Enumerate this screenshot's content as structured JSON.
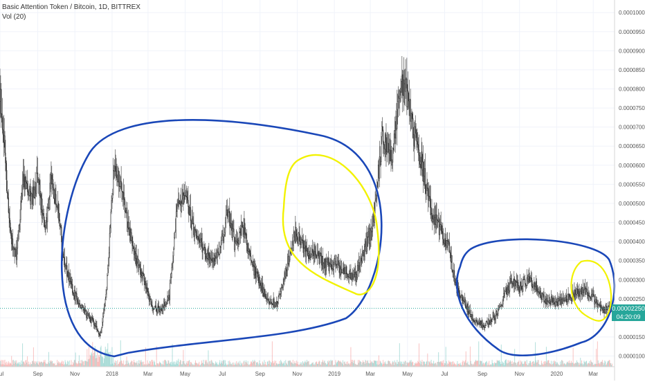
{
  "legend": {
    "symbol": "Basic Attention Token / Bitcoin, 1D, BITTREX",
    "volume": "Vol (20)"
  },
  "price_tag": {
    "last": "0.00002250",
    "countdown": "04:20:09"
  },
  "colors": {
    "up": "#26a69a",
    "down": "#ef5350",
    "candle": "#333333",
    "grid": "#f0f3fa",
    "last_line": "#26a69a",
    "blue_marker": "#1a47b8",
    "yellow_marker": "#f2f200",
    "axis_text": "#555555"
  },
  "chart_data": {
    "type": "candlestick",
    "y_axis": {
      "ticks": [
        "0.00001000",
        "0.00001500",
        "0.00002000",
        "0.00002500",
        "0.00003000",
        "0.00003500",
        "0.00004000",
        "0.00004500",
        "0.00005000",
        "0.00005500",
        "0.00006000",
        "0.00006500",
        "0.00007000",
        "0.00007500",
        "0.00008000",
        "0.00008500",
        "0.00009000",
        "0.00009500",
        "0.00010000"
      ],
      "range": [
        7.2e-06,
        0.0001033
      ]
    },
    "x_axis": {
      "ticks": [
        "Jul",
        "Sep",
        "Nov",
        "2018",
        "Mar",
        "May",
        "Jul",
        "Sep",
        "Nov",
        "2019",
        "Mar",
        "May",
        "Jul",
        "Sep",
        "Nov",
        "2020",
        "Mar"
      ],
      "range": [
        "2017-07-01",
        "2020-04-05"
      ]
    },
    "price_path": [
      [
        "2017-07-01",
        8e-05
      ],
      [
        "2017-07-08",
        6.5e-05
      ],
      [
        "2017-07-18",
        4.2e-05
      ],
      [
        "2017-07-28",
        3.6e-05
      ],
      [
        "2017-08-08",
        5.6e-05
      ],
      [
        "2017-08-20",
        5.1e-05
      ],
      [
        "2017-09-01",
        5.6e-05
      ],
      [
        "2017-09-12",
        4.3e-05
      ],
      [
        "2017-09-24",
        5.6e-05
      ],
      [
        "2017-10-05",
        4.7e-05
      ],
      [
        "2017-10-15",
        3.4e-05
      ],
      [
        "2017-10-28",
        2.7e-05
      ],
      [
        "2017-11-10",
        2.3e-05
      ],
      [
        "2017-11-25",
        2e-05
      ],
      [
        "2017-12-05",
        1.8e-05
      ],
      [
        "2017-12-12",
        1.5e-05
      ],
      [
        "2017-12-22",
        2.5e-05
      ],
      [
        "2018-01-04",
        5.9e-05
      ],
      [
        "2018-01-15",
        5.4e-05
      ],
      [
        "2018-01-28",
        4.3e-05
      ],
      [
        "2018-02-10",
        3.5e-05
      ],
      [
        "2018-02-22",
        3e-05
      ],
      [
        "2018-03-08",
        2.3e-05
      ],
      [
        "2018-03-22",
        2.2e-05
      ],
      [
        "2018-04-05",
        2.6e-05
      ],
      [
        "2018-04-18",
        4.8e-05
      ],
      [
        "2018-05-01",
        5.2e-05
      ],
      [
        "2018-05-15",
        4.3e-05
      ],
      [
        "2018-05-30",
        3.8e-05
      ],
      [
        "2018-06-15",
        3.4e-05
      ],
      [
        "2018-06-28",
        3.8e-05
      ],
      [
        "2018-07-10",
        4.8e-05
      ],
      [
        "2018-07-22",
        3.9e-05
      ],
      [
        "2018-08-05",
        4.4e-05
      ],
      [
        "2018-08-18",
        3.4e-05
      ],
      [
        "2018-09-01",
        2.9e-05
      ],
      [
        "2018-09-15",
        2.4e-05
      ],
      [
        "2018-09-30",
        2.4e-05
      ],
      [
        "2018-10-15",
        3.3e-05
      ],
      [
        "2018-10-28",
        4.2e-05
      ],
      [
        "2018-11-05",
        4.1e-05
      ],
      [
        "2018-11-15",
        3.7e-05
      ],
      [
        "2018-12-01",
        3.7e-05
      ],
      [
        "2018-12-15",
        3.4e-05
      ],
      [
        "2019-01-01",
        3.4e-05
      ],
      [
        "2019-01-20",
        3.2e-05
      ],
      [
        "2019-02-05",
        3.1e-05
      ],
      [
        "2019-02-20",
        3.8e-05
      ],
      [
        "2019-03-05",
        4.4e-05
      ],
      [
        "2019-03-20",
        6.7e-05
      ],
      [
        "2019-04-05",
        6.2e-05
      ],
      [
        "2019-04-20",
        8e-05
      ],
      [
        "2019-05-01",
        7.9e-05
      ],
      [
        "2019-05-10",
        6.9e-05
      ],
      [
        "2019-05-25",
        6e-05
      ],
      [
        "2019-06-10",
        4.7e-05
      ],
      [
        "2019-06-25",
        4.3e-05
      ],
      [
        "2019-07-08",
        3.8e-05
      ],
      [
        "2019-07-20",
        2.8e-05
      ],
      [
        "2019-08-05",
        2.3e-05
      ],
      [
        "2019-08-20",
        1.9e-05
      ],
      [
        "2019-09-05",
        1.8e-05
      ],
      [
        "2019-09-20",
        2e-05
      ],
      [
        "2019-10-05",
        2.5e-05
      ],
      [
        "2019-10-20",
        3e-05
      ],
      [
        "2019-11-01",
        2.8e-05
      ],
      [
        "2019-11-15",
        3e-05
      ],
      [
        "2019-11-25",
        2.9e-05
      ],
      [
        "2019-12-10",
        2.5e-05
      ],
      [
        "2020-01-01",
        2.4e-05
      ],
      [
        "2020-01-20",
        2.5e-05
      ],
      [
        "2020-02-05",
        2.7e-05
      ],
      [
        "2020-02-20",
        2.7e-05
      ],
      [
        "2020-03-05",
        2.4e-05
      ],
      [
        "2020-03-20",
        2.2e-05
      ],
      [
        "2020-04-01",
        2.25e-05
      ]
    ],
    "volume_series": "Vol (20)",
    "last_price": 2.25e-05
  }
}
